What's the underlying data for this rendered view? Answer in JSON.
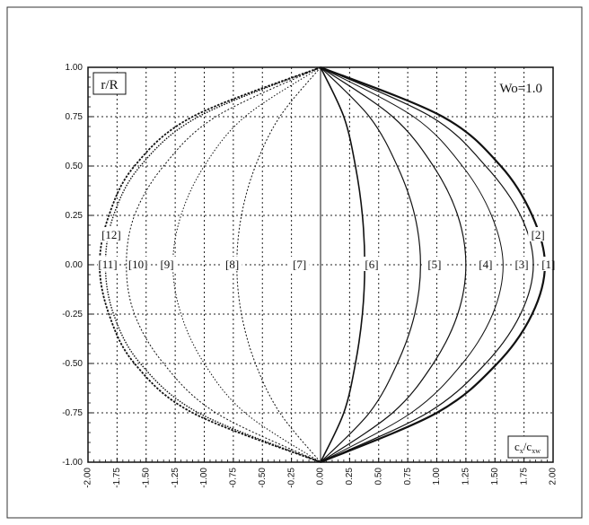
{
  "chart_data": {
    "type": "line",
    "ylabel": "r/R",
    "xlabel_main": "c",
    "xlabel_sub_num": "x",
    "xlabel_den_main": "c",
    "xlabel_den_sub": "xw",
    "annotation": "Wo=1.0",
    "xlim": [
      -2.0,
      2.0
    ],
    "ylim": [
      -1.0,
      1.0
    ],
    "grid": true,
    "x_ticks": [
      "-2.00",
      "-1.75",
      "-1.50",
      "-1.25",
      "-1.00",
      "-0.75",
      "-0.50",
      "-0.25",
      "0.00",
      "0.25",
      "0.50",
      "0.75",
      "1.00",
      "1.25",
      "1.50",
      "1.75",
      "2.00"
    ],
    "y_ticks": [
      "1.00",
      "0.75",
      "0.50",
      "0.25",
      "0.00",
      "-0.25",
      "-0.50",
      "-0.75",
      "-1.00"
    ],
    "y_tick_values": [
      1.0,
      0.75,
      0.5,
      0.25,
      0.0,
      -0.25,
      -0.5,
      -0.75,
      -1.0
    ],
    "series": [
      {
        "name": "[1]",
        "label_x": 1.96,
        "label_y": 0.0,
        "values": [
          [
            0,
            1.0
          ],
          [
            1.05,
            0.75
          ],
          [
            1.55,
            0.5
          ],
          [
            1.82,
            0.25
          ],
          [
            1.93,
            0.0
          ],
          [
            1.82,
            -0.25
          ],
          [
            1.52,
            -0.5
          ],
          [
            1.0,
            -0.75
          ],
          [
            0,
            -1.0
          ]
        ]
      },
      {
        "name": "[2]",
        "label_x": 1.87,
        "label_y": 0.15,
        "values": [
          [
            0,
            1.0
          ],
          [
            0.95,
            0.75
          ],
          [
            1.42,
            0.5
          ],
          [
            1.72,
            0.25
          ],
          [
            1.83,
            0.0
          ],
          [
            1.72,
            -0.25
          ],
          [
            1.42,
            -0.5
          ],
          [
            0.92,
            -0.75
          ],
          [
            0,
            -1.0
          ]
        ]
      },
      {
        "name": "[3]",
        "label_x": 1.73,
        "label_y": 0.0,
        "values": [
          [
            0,
            1.0
          ],
          [
            0.8,
            0.75
          ],
          [
            1.22,
            0.5
          ],
          [
            1.47,
            0.25
          ],
          [
            1.57,
            0.0
          ],
          [
            1.48,
            -0.25
          ],
          [
            1.22,
            -0.5
          ],
          [
            0.78,
            -0.75
          ],
          [
            0,
            -1.0
          ]
        ]
      },
      {
        "name": "[4]",
        "label_x": 1.42,
        "label_y": 0.0,
        "values": [
          [
            0,
            1.0
          ],
          [
            0.62,
            0.75
          ],
          [
            0.97,
            0.5
          ],
          [
            1.18,
            0.25
          ],
          [
            1.25,
            0.0
          ],
          [
            1.18,
            -0.25
          ],
          [
            0.97,
            -0.5
          ],
          [
            0.62,
            -0.75
          ],
          [
            0,
            -1.0
          ]
        ]
      },
      {
        "name": "[5]",
        "label_x": 0.98,
        "label_y": 0.0,
        "values": [
          [
            0,
            1.0
          ],
          [
            0.42,
            0.75
          ],
          [
            0.66,
            0.5
          ],
          [
            0.81,
            0.25
          ],
          [
            0.86,
            0.0
          ],
          [
            0.81,
            -0.25
          ],
          [
            0.66,
            -0.5
          ],
          [
            0.42,
            -0.75
          ],
          [
            0,
            -1.0
          ]
        ]
      },
      {
        "name": "[6]",
        "label_x": 0.44,
        "label_y": 0.0,
        "values": [
          [
            0,
            1.0
          ],
          [
            0.2,
            0.75
          ],
          [
            0.3,
            0.5
          ],
          [
            0.36,
            0.25
          ],
          [
            0.38,
            0.0
          ],
          [
            0.36,
            -0.25
          ],
          [
            0.3,
            -0.5
          ],
          [
            0.2,
            -0.75
          ],
          [
            0,
            -1.0
          ]
        ]
      },
      {
        "name": "[7]",
        "label_x": -0.18,
        "label_y": 0.0,
        "values": [
          [
            0,
            1.0
          ],
          [
            0,
            0.5
          ],
          [
            0,
            0.0
          ],
          [
            0,
            -0.5
          ],
          [
            0,
            -1.0
          ]
        ]
      },
      {
        "name": "[8]",
        "label_x": -0.76,
        "label_y": 0.0,
        "values": [
          [
            0,
            1.0
          ],
          [
            -0.35,
            0.75
          ],
          [
            -0.56,
            0.5
          ],
          [
            -0.68,
            0.25
          ],
          [
            -0.72,
            0.0
          ],
          [
            -0.68,
            -0.25
          ],
          [
            -0.56,
            -0.5
          ],
          [
            -0.35,
            -0.75
          ],
          [
            0,
            -1.0
          ]
        ]
      },
      {
        "name": "[9]",
        "label_x": -1.32,
        "label_y": 0.0,
        "values": [
          [
            0,
            1.0
          ],
          [
            -0.65,
            0.75
          ],
          [
            -1.0,
            0.5
          ],
          [
            -1.2,
            0.25
          ],
          [
            -1.27,
            0.0
          ],
          [
            -1.2,
            -0.25
          ],
          [
            -1.0,
            -0.5
          ],
          [
            -0.65,
            -0.75
          ],
          [
            0,
            -1.0
          ]
        ]
      },
      {
        "name": "[10]",
        "label_x": -1.57,
        "label_y": 0.0,
        "values": [
          [
            0,
            1.0
          ],
          [
            -0.9,
            0.75
          ],
          [
            -1.35,
            0.5
          ],
          [
            -1.6,
            0.25
          ],
          [
            -1.67,
            0.0
          ],
          [
            -1.6,
            -0.25
          ],
          [
            -1.35,
            -0.5
          ],
          [
            -0.9,
            -0.75
          ],
          [
            0,
            -1.0
          ]
        ]
      },
      {
        "name": "[11]",
        "label_x": -1.83,
        "label_y": 0.0,
        "values": [
          [
            0,
            1.0
          ],
          [
            -1.05,
            0.75
          ],
          [
            -1.55,
            0.5
          ],
          [
            -1.78,
            0.25
          ],
          [
            -1.85,
            0.0
          ],
          [
            -1.78,
            -0.25
          ],
          [
            -1.55,
            -0.5
          ],
          [
            -1.05,
            -0.75
          ],
          [
            0,
            -1.0
          ]
        ]
      },
      {
        "name": "[12]",
        "label_x": -1.8,
        "label_y": 0.15,
        "values": [
          [
            0,
            1.0
          ],
          [
            -1.1,
            0.75
          ],
          [
            -1.6,
            0.5
          ],
          [
            -1.82,
            0.25
          ],
          [
            -1.9,
            0.0
          ],
          [
            -1.82,
            -0.25
          ],
          [
            -1.6,
            -0.5
          ],
          [
            -1.1,
            -0.75
          ],
          [
            0,
            -1.0
          ]
        ]
      }
    ]
  }
}
